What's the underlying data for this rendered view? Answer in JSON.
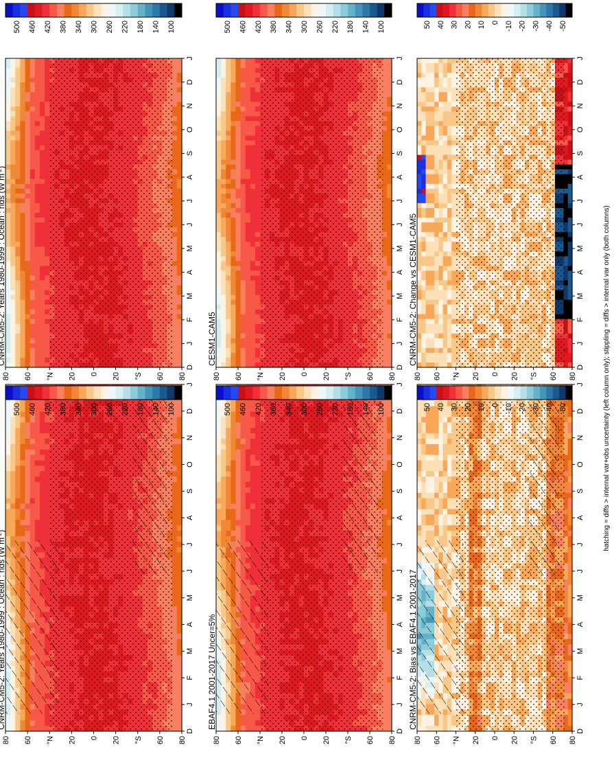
{
  "footnote": "hatching = diffs > internal var+obs uncertainty (left column only); stippling = diffs > internal var only (both columns)",
  "lat_ticks": [
    "80",
    "60",
    "°N",
    "20",
    "0",
    "20",
    "°S",
    "60",
    "80"
  ],
  "month_ticks": [
    "D",
    "J",
    "F",
    "M",
    "A",
    "M",
    "J",
    "J",
    "A",
    "S",
    "O",
    "N",
    "D",
    "J"
  ],
  "palettes": {
    "field": [
      "#0a10c8",
      "#1830e0",
      "#2848f0",
      "#c81018",
      "#e01820",
      "#f03038",
      "#f85848",
      "#f88060",
      "#e86818",
      "#f08838",
      "#f8a858",
      "#f8c888",
      "#fce0b8",
      "#fff4e4",
      "#eef8fa",
      "#d4eef2",
      "#b4dfe6",
      "#8ccbd8",
      "#64b3c8",
      "#4496b8",
      "#2c78a8",
      "#1c5890",
      "#103868",
      "#000000"
    ],
    "diff": [
      "#0a10c8",
      "#1830e0",
      "#2848f0",
      "#c81018",
      "#e01820",
      "#f03038",
      "#f85848",
      "#f88060",
      "#e86818",
      "#f08838",
      "#f8a858",
      "#f8c888",
      "#fce0b8",
      "#fff4e4",
      "#eef8fa",
      "#d4eef2",
      "#b4dfe6",
      "#8ccbd8",
      "#64b3c8",
      "#4496b8",
      "#2c78a8",
      "#1c5890",
      "#103868",
      "#000000"
    ]
  },
  "chart_data": [
    {
      "type": "heatmap",
      "title": "CNRM-CM5-2: Years 1980-1999 : Ocean : rlds (W m",
      "title_sup": "-2",
      "title_end": ")",
      "xlabel": "",
      "ylabel": "",
      "colorbar_ticks": [
        "500",
        "460",
        "420",
        "380",
        "340",
        "300",
        "260",
        "220",
        "180",
        "140",
        "100"
      ],
      "kind": "field",
      "hatching": true,
      "stippling": true
    },
    {
      "type": "heatmap",
      "title": "CNRM-CM5-2: Years 1980-1999 : Ocean : rlds (W m",
      "title_sup": "-2",
      "title_end": ")",
      "xlabel": "",
      "ylabel": "",
      "colorbar_ticks": [
        "500",
        "460",
        "420",
        "380",
        "340",
        "300",
        "260",
        "220",
        "180",
        "140",
        "100"
      ],
      "kind": "field",
      "hatching": false,
      "stippling": true
    },
    {
      "type": "heatmap",
      "title": "EBAF4.1 2001-2017 Uncer=5%",
      "xlabel": "",
      "ylabel": "",
      "colorbar_ticks": [
        "500",
        "460",
        "420",
        "380",
        "340",
        "300",
        "260",
        "220",
        "180",
        "140",
        "100"
      ],
      "kind": "field",
      "hatching": true,
      "stippling": true
    },
    {
      "type": "heatmap",
      "title": "CESM1-CAM5",
      "xlabel": "",
      "ylabel": "",
      "colorbar_ticks": [
        "500",
        "460",
        "420",
        "380",
        "340",
        "300",
        "260",
        "220",
        "180",
        "140",
        "100"
      ],
      "kind": "field",
      "hatching": false,
      "stippling": true
    },
    {
      "type": "heatmap",
      "title": "CNRM-CM5-2: Bias vs EBAF4.1 2001-2017",
      "xlabel": "",
      "ylabel": "",
      "colorbar_ticks": [
        "50",
        "40",
        "30",
        "20",
        "10",
        "0",
        "-10",
        "-20",
        "-30",
        "-40",
        "-50"
      ],
      "kind": "bias",
      "hatching": true,
      "stippling": true
    },
    {
      "type": "heatmap",
      "title": "CNRM-CM5-2: Change vs CESM1-CAM5",
      "xlabel": "",
      "ylabel": "",
      "colorbar_ticks": [
        "50",
        "40",
        "30",
        "20",
        "10",
        "0",
        "-10",
        "-20",
        "-30",
        "-40",
        "-50"
      ],
      "kind": "change",
      "hatching": false,
      "stippling": true
    }
  ]
}
